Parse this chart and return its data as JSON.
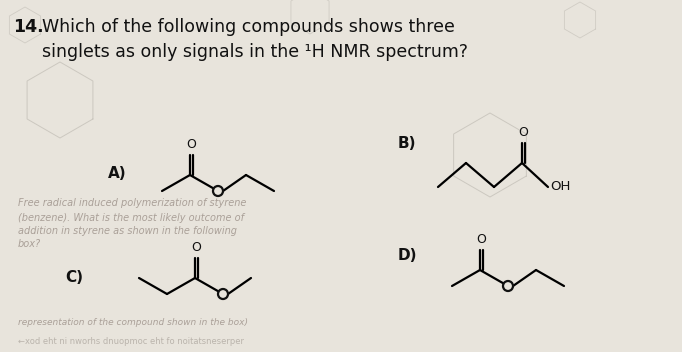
{
  "bg_color": "#e8e4dc",
  "title_number": "14.",
  "title_text": "Which of the following compounds shows three\nsinglets as only signals in the ¹H NMR spectrum?",
  "label_A": "A)",
  "label_B": "B)",
  "label_C": "C)",
  "label_D": "D)",
  "font_size_title": 12.5,
  "font_size_label": 11,
  "text_color": "#111111",
  "ghost_color": "#aaa098",
  "ghost_color2": "#bab4ac",
  "lw": 1.6
}
